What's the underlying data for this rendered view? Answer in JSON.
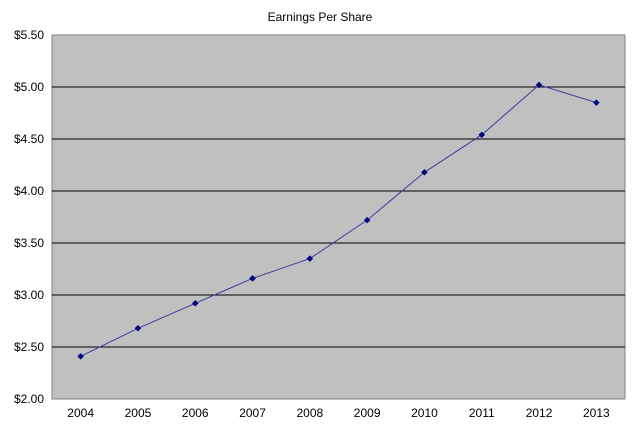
{
  "chart_data": {
    "type": "line",
    "title": "Earnings Per Share",
    "xlabel": "",
    "ylabel": "",
    "categories": [
      "2004",
      "2005",
      "2006",
      "2007",
      "2008",
      "2009",
      "2010",
      "2011",
      "2012",
      "2013"
    ],
    "series": [
      {
        "values": [
          2.41,
          2.68,
          2.92,
          3.16,
          3.35,
          3.72,
          4.18,
          4.54,
          5.02,
          4.85
        ]
      }
    ],
    "ylim": [
      2.0,
      5.5
    ],
    "yticks": [
      2.0,
      2.5,
      3.0,
      3.5,
      4.0,
      4.5,
      5.0,
      5.5
    ],
    "ytick_labels": [
      "$2.00",
      "$2.50",
      "$3.00",
      "$3.50",
      "$4.00",
      "$4.50",
      "$5.00",
      "$5.50"
    ],
    "grid": "horizontal",
    "legend": "none",
    "colors": {
      "plot_background": "#c0c0c0",
      "series_line": "#3b3b9e",
      "marker": "#000080",
      "gridline": "#000000"
    },
    "marker": "diamond"
  }
}
